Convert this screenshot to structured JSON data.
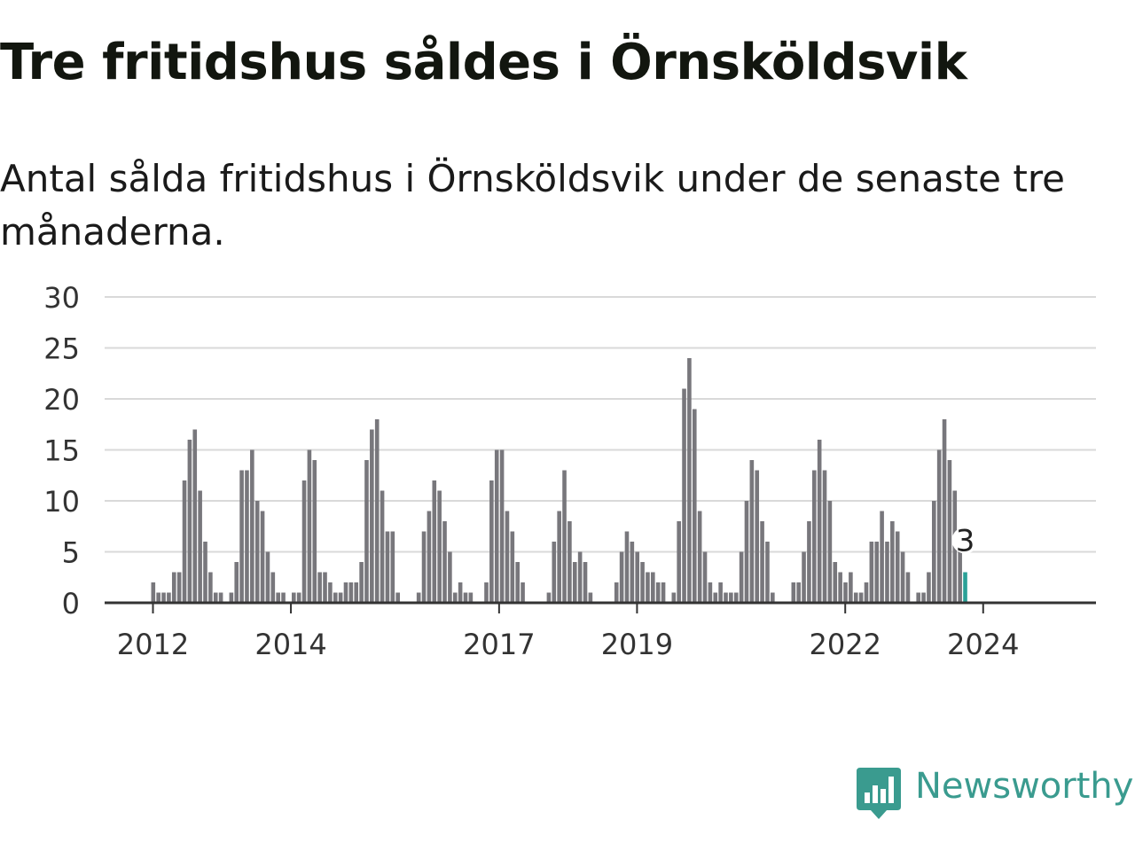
{
  "header": {
    "title": "Tre fritidshus såldes i Örnsköldsvik",
    "subtitle": "Antal sålda fritidshus i Örnsköldsvik under de senaste tre månaderna."
  },
  "brand": {
    "name": "Newsworthy",
    "color": "#3a9b8f"
  },
  "colors": {
    "bar": "#78777c",
    "highlight": "#2aa197",
    "grid": "#d9d9d9",
    "axis": "#333333"
  },
  "chart_data": {
    "type": "bar",
    "x_ticks": [
      "2012",
      "2014",
      "2017",
      "2019",
      "2022",
      "2024"
    ],
    "y_ticks": [
      0,
      5,
      10,
      15,
      20,
      25,
      30
    ],
    "ylim": [
      0,
      30
    ],
    "grid": true,
    "legend": "none",
    "values": [
      2,
      1,
      1,
      1,
      3,
      3,
      12,
      16,
      17,
      11,
      6,
      3,
      1,
      1,
      0,
      1,
      4,
      13,
      13,
      15,
      10,
      9,
      5,
      3,
      1,
      1,
      0,
      1,
      1,
      12,
      15,
      14,
      3,
      3,
      2,
      1,
      1,
      2,
      2,
      2,
      4,
      14,
      17,
      18,
      11,
      7,
      7,
      1,
      0,
      0,
      0,
      1,
      7,
      9,
      12,
      11,
      8,
      5,
      1,
      2,
      1,
      1,
      0,
      0,
      2,
      12,
      15,
      15,
      9,
      7,
      4,
      2,
      0,
      0,
      0,
      0,
      1,
      6,
      9,
      13,
      8,
      4,
      5,
      4,
      1,
      0,
      0,
      0,
      0,
      2,
      5,
      7,
      6,
      5,
      4,
      3,
      3,
      2,
      2,
      0,
      1,
      8,
      21,
      24,
      19,
      9,
      5,
      2,
      1,
      2,
      1,
      1,
      1,
      5,
      10,
      14,
      13,
      8,
      6,
      1,
      0,
      0,
      0,
      2,
      2,
      5,
      8,
      13,
      16,
      13,
      10,
      4,
      3,
      2,
      3,
      1,
      1,
      2,
      6,
      6,
      9,
      6,
      8,
      7,
      5,
      3,
      0,
      1,
      1,
      3,
      10,
      15,
      18,
      14,
      11,
      6,
      3
    ],
    "highlight_label": "3"
  }
}
